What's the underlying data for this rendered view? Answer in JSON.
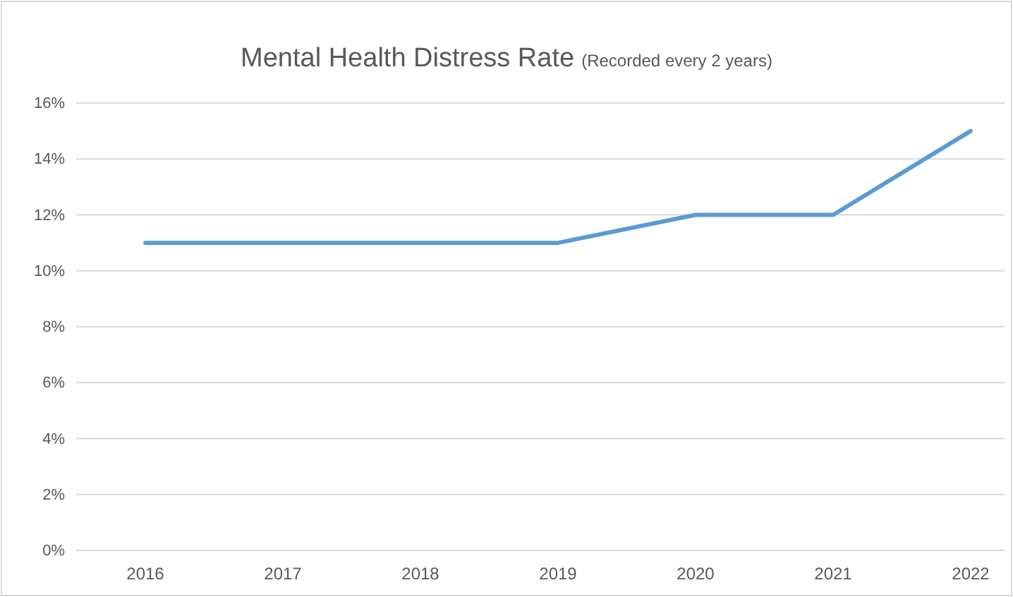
{
  "chart_data": {
    "type": "line",
    "title": "Mental Health Distress Rate",
    "subtitle": "(Recorded every 2 years)",
    "categories": [
      "2016",
      "2017",
      "2018",
      "2019",
      "2020",
      "2021",
      "2022"
    ],
    "series": [
      {
        "color": "#5b9bd5",
        "values": [
          11,
          11,
          11,
          11,
          12,
          12,
          15
        ]
      }
    ],
    "ylim": [
      0,
      16
    ],
    "yticks": [
      {
        "value": 0,
        "label": "0%"
      },
      {
        "value": 2,
        "label": "2%"
      },
      {
        "value": 4,
        "label": "4%"
      },
      {
        "value": 6,
        "label": "6%"
      },
      {
        "value": 8,
        "label": "8%"
      },
      {
        "value": 10,
        "label": "10%"
      },
      {
        "value": 12,
        "label": "12%"
      },
      {
        "value": 14,
        "label": "14%"
      },
      {
        "value": 16,
        "label": "16%"
      }
    ],
    "grid": "y",
    "marker": "none",
    "line_style": "solid"
  }
}
